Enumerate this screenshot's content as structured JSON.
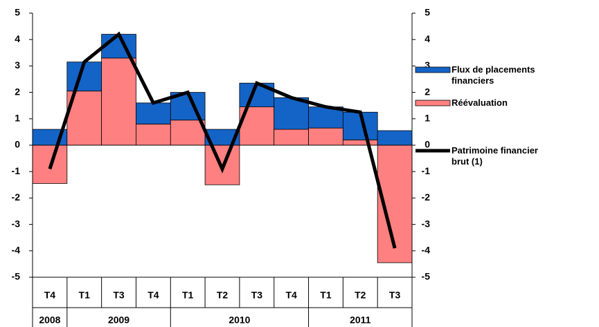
{
  "chart_data": {
    "type": "bar",
    "categories": [
      "T4",
      "T1",
      "T3",
      "T4",
      "T1",
      "T2",
      "T3",
      "T4",
      "T1",
      "T2",
      "T3"
    ],
    "years": [
      "2008",
      "2009",
      null,
      null,
      "2010",
      null,
      null,
      null,
      "2011",
      null,
      null
    ],
    "stacked": true,
    "series": [
      {
        "name": "Flux de placements financiers",
        "color": "#1464c8",
        "values": [
          0.6,
          1.1,
          0.9,
          0.8,
          1.05,
          0.6,
          0.9,
          1.2,
          0.8,
          1.05,
          0.55
        ]
      },
      {
        "name": "Réévaluation",
        "color": "#ff8080",
        "values": [
          -1.45,
          2.05,
          3.3,
          0.8,
          0.95,
          -1.5,
          1.45,
          0.6,
          0.65,
          0.2,
          -4.45
        ]
      },
      {
        "name": "Patrimoine financier brut (1)",
        "type": "line",
        "axis": "y2",
        "color": "#000000",
        "values": [
          -0.9,
          3.15,
          4.2,
          1.6,
          2.0,
          -0.9,
          2.35,
          1.8,
          1.45,
          1.25,
          -3.9
        ]
      }
    ],
    "ylim": [
      -5,
      5
    ],
    "yticks": [
      -5,
      -4,
      -3,
      -2,
      -1,
      0,
      1,
      2,
      3,
      4,
      5
    ],
    "y2lim": [
      -5,
      5
    ],
    "y2ticks": [
      -5,
      -4,
      -3,
      -2,
      -1,
      0,
      1,
      2,
      3,
      4,
      5
    ],
    "legend": "right"
  }
}
